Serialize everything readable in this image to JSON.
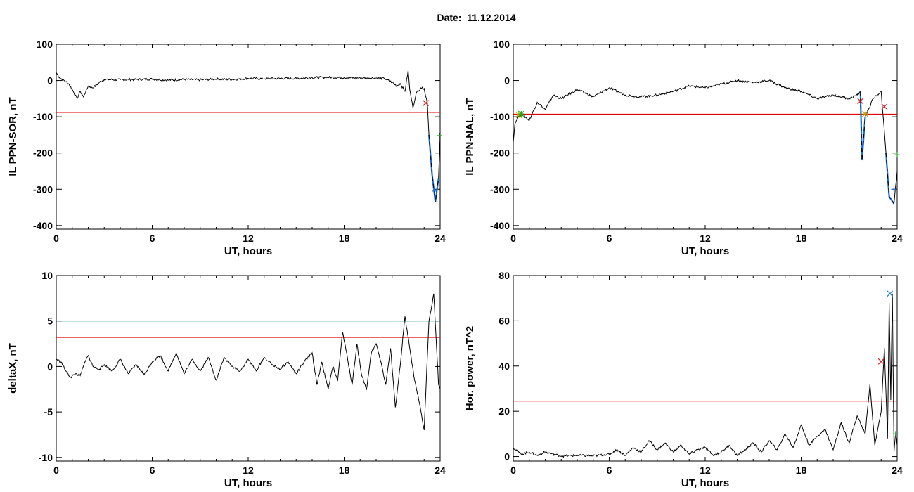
{
  "header": {
    "date_label": "Date:",
    "date_value": "11.12.2014"
  },
  "colors": {
    "threshold": "#e00000",
    "threshold_2": "#008080",
    "trace": "#000000",
    "event_blue": "#1f6fd6",
    "marker_red": "#cc2222",
    "marker_green": "#22aa22",
    "marker_yellow": "#c8a000"
  },
  "chart_data": [
    {
      "type": "line",
      "panel": "top-left",
      "xlabel": "UT, hours",
      "ylabel": "IL PPN-SOR, nT",
      "xlim": [
        0,
        24
      ],
      "ylim": [
        -410,
        100
      ],
      "xticks": [
        0,
        6,
        12,
        18,
        24
      ],
      "yticks": [
        100,
        0,
        -100,
        -200,
        -300,
        -400
      ],
      "threshold": -88,
      "series": [
        {
          "x": [
            0,
            0.2,
            0.5,
            0.8,
            1.0,
            1.3,
            1.5,
            1.7,
            2.0,
            2.3,
            2.7,
            3,
            4,
            5,
            6,
            7,
            8,
            9,
            10,
            11,
            12,
            13,
            14,
            15,
            16,
            17,
            18,
            19,
            20,
            20.5,
            21,
            21.3,
            21.5,
            21.8,
            22.0,
            22.1,
            22.3,
            22.5,
            22.8,
            23.0,
            23.2,
            23.3,
            23.5,
            23.7,
            23.9,
            24
          ],
          "y": [
            22,
            8,
            0,
            -10,
            -25,
            -50,
            -30,
            -45,
            -15,
            -20,
            -5,
            3,
            2,
            3,
            4,
            1,
            3,
            2,
            4,
            3,
            6,
            5,
            6,
            6,
            8,
            9,
            8,
            7,
            7,
            6,
            -5,
            -15,
            -8,
            -30,
            28,
            -25,
            -75,
            -35,
            -20,
            -22,
            -62,
            -150,
            -260,
            -335,
            -270,
            -150
          ]
        }
      ],
      "event_segments": [
        {
          "x": [
            23.3,
            23.5,
            23.7,
            23.9
          ],
          "y": [
            -150,
            -260,
            -335,
            -270
          ]
        }
      ],
      "markers": [
        {
          "x": 23.1,
          "y": -62,
          "symbol": "x",
          "color": "#cc2222"
        },
        {
          "x": 23.95,
          "y": -152,
          "symbol": "+",
          "color": "#22aa22"
        },
        {
          "x": 23.65,
          "y": -305,
          "symbol": "+",
          "color": "#1f6fd6"
        }
      ]
    },
    {
      "type": "line",
      "panel": "top-right",
      "xlabel": "UT, hours",
      "ylabel": "IL PPN-NAL, nT",
      "xlim": [
        0,
        24
      ],
      "ylim": [
        -410,
        100
      ],
      "xticks": [
        0,
        6,
        12,
        18,
        24
      ],
      "yticks": [
        100,
        0,
        -100,
        -200,
        -300,
        -400
      ],
      "threshold": -93,
      "series": [
        {
          "x": [
            0,
            0.1,
            0.3,
            0.6,
            1.0,
            1.5,
            2.0,
            2.5,
            3,
            4,
            5,
            6,
            7,
            8,
            9,
            10,
            11,
            12,
            13,
            14,
            15,
            16,
            17,
            18,
            19,
            20,
            21,
            21.5,
            21.7,
            21.8,
            22.0,
            22.2,
            22.5,
            23.0,
            23.3,
            23.5,
            23.8,
            24
          ],
          "y": [
            -170,
            -120,
            -100,
            -95,
            -110,
            -60,
            -80,
            -40,
            -50,
            -25,
            -45,
            -20,
            -40,
            -45,
            -40,
            -30,
            -15,
            -20,
            -10,
            0,
            -5,
            0,
            -20,
            -30,
            -50,
            -40,
            -50,
            -40,
            -30,
            -220,
            -100,
            -80,
            -50,
            -30,
            -200,
            -320,
            -340,
            -250
          ]
        }
      ],
      "event_segments": [
        {
          "x": [
            21.7,
            21.8,
            22.0
          ],
          "y": [
            -30,
            -220,
            -100
          ]
        },
        {
          "x": [
            23.3,
            23.5,
            23.8
          ],
          "y": [
            -200,
            -320,
            -340
          ]
        }
      ],
      "markers": [
        {
          "x": 0.35,
          "y": -95,
          "symbol": "*",
          "color": "#c8a000"
        },
        {
          "x": 0.5,
          "y": -92,
          "symbol": "*",
          "color": "#22aa22"
        },
        {
          "x": 21.7,
          "y": -57,
          "symbol": "x",
          "color": "#cc2222"
        },
        {
          "x": 22.0,
          "y": -92,
          "symbol": "*",
          "color": "#c8a000"
        },
        {
          "x": 23.2,
          "y": -72,
          "symbol": "x",
          "color": "#cc2222"
        },
        {
          "x": 23.8,
          "y": -300,
          "symbol": "+",
          "color": "#1f6fd6"
        },
        {
          "x": 24,
          "y": -205,
          "symbol": "+",
          "color": "#22aa22"
        }
      ]
    },
    {
      "type": "line",
      "panel": "bottom-left",
      "xlabel": "UT, hours",
      "ylabel": "deltaX, nT",
      "xlim": [
        0,
        24
      ],
      "ylim": [
        -10.4,
        10
      ],
      "xticks": [
        0,
        6,
        12,
        18,
        24
      ],
      "yticks": [
        10,
        5,
        0,
        -5,
        -10
      ],
      "yticklabels": [
        "10",
        "5",
        "0",
        "-5",
        "-10"
      ],
      "thresholds": [
        {
          "value": 5,
          "color": "#008080"
        },
        {
          "value": 3.2,
          "color": "#e00000"
        }
      ],
      "series": [
        {
          "x": [
            0,
            0.3,
            0.6,
            0.9,
            1.2,
            1.5,
            1.8,
            2.0,
            2.3,
            2.7,
            3,
            3.5,
            4,
            4.5,
            5,
            5.5,
            6,
            6.5,
            7,
            7.5,
            8,
            8.5,
            9,
            9.5,
            10,
            10.5,
            11,
            11.5,
            12,
            12.5,
            13,
            13.5,
            14,
            14.5,
            15,
            15.5,
            16,
            16.3,
            16.6,
            17,
            17.3,
            17.6,
            17.9,
            18.2,
            18.5,
            18.8,
            19.1,
            19.4,
            19.7,
            20,
            20.3,
            20.6,
            20.9,
            21.2,
            21.5,
            21.8,
            22.1,
            22.4,
            22.7,
            23.0,
            23.3,
            23.6,
            23.9,
            24
          ],
          "y": [
            0.8,
            0.5,
            -0.5,
            -1.2,
            -0.8,
            -1.0,
            0.5,
            1.2,
            0.0,
            -0.3,
            0.2,
            -0.5,
            0.8,
            -0.8,
            0.2,
            -0.9,
            0.5,
            1.2,
            -0.5,
            1.5,
            -0.8,
            0.8,
            -0.5,
            1.0,
            -1.5,
            1.0,
            0.0,
            -0.5,
            0.8,
            -0.5,
            1.0,
            0.2,
            -0.3,
            0.5,
            -0.8,
            0.5,
            1.5,
            -2.0,
            0.5,
            -2.5,
            0.0,
            -1.5,
            3.8,
            1.0,
            -2.0,
            2.5,
            -1.0,
            -2.5,
            1.5,
            2.5,
            0.5,
            -2.0,
            2.0,
            -4.5,
            0.0,
            5.5,
            2.0,
            -1.5,
            -4.0,
            -7.0,
            5.0,
            8.0,
            -2.0,
            -2.5
          ]
        }
      ]
    },
    {
      "type": "line",
      "panel": "bottom-right",
      "xlabel": "UT, hours",
      "ylabel": "Hor. power, nT^2",
      "xlim": [
        0,
        24
      ],
      "ylim": [
        -2,
        80
      ],
      "xticks": [
        0,
        6,
        12,
        18,
        24
      ],
      "yticks": [
        80,
        60,
        40,
        20,
        0
      ],
      "threshold": 24.5,
      "series": [
        {
          "x": [
            0,
            0.5,
            1,
            1.5,
            2,
            3,
            4,
            5,
            6,
            6.5,
            7,
            7.5,
            8,
            8.5,
            9,
            9.5,
            10,
            10.5,
            11,
            11.5,
            12,
            12.5,
            13,
            13.5,
            14,
            14.5,
            15,
            15.5,
            16,
            16.5,
            17,
            17.5,
            18,
            18.5,
            19,
            19.5,
            20,
            20.5,
            21,
            21.5,
            22,
            22.3,
            22.6,
            23.0,
            23.2,
            23.4,
            23.5,
            23.6,
            23.7,
            23.8,
            23.9,
            24
          ],
          "y": [
            4,
            1,
            2,
            0.5,
            2,
            0.2,
            0.5,
            0.3,
            1,
            3,
            0.5,
            4,
            2,
            7,
            3,
            6,
            2,
            5,
            1,
            3,
            4,
            0.5,
            2,
            5,
            0.5,
            3,
            6,
            2,
            7,
            3,
            10,
            4,
            14,
            5,
            9,
            12,
            3,
            15,
            6,
            18,
            10,
            32,
            5,
            20,
            48,
            8,
            68,
            25,
            72,
            2,
            10,
            5
          ]
        }
      ],
      "markers": [
        {
          "x": 23.0,
          "y": 42,
          "symbol": "x",
          "color": "#cc2222"
        },
        {
          "x": 23.55,
          "y": 72,
          "symbol": "x",
          "color": "#1f6fd6"
        },
        {
          "x": 23.9,
          "y": 10,
          "symbol": "+",
          "color": "#22aa22"
        }
      ]
    }
  ]
}
